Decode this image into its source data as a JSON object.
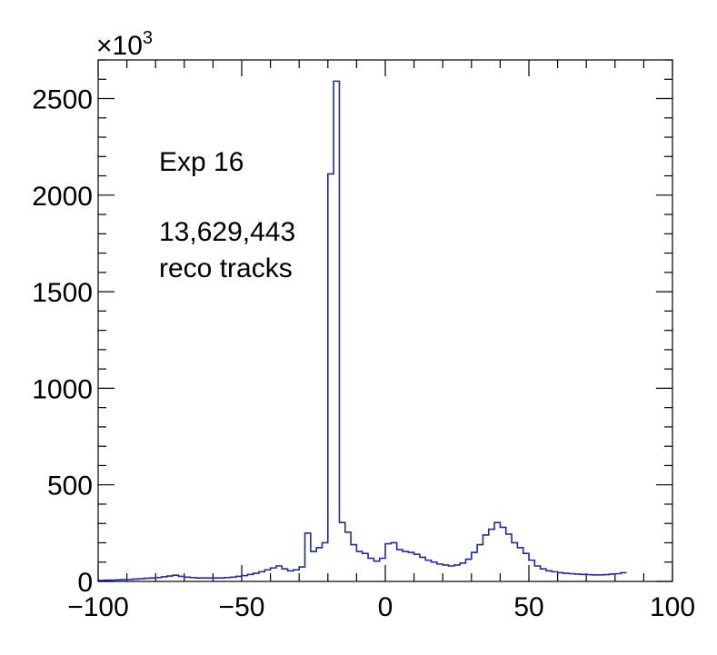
{
  "chart_data": {
    "type": "histogram",
    "title": "",
    "xlabel": "",
    "ylabel": "",
    "xlim": [
      -100,
      100
    ],
    "ylim": [
      0,
      2700
    ],
    "y_multiplier": "×10",
    "y_multiplier_exponent": "3",
    "x_ticks": [
      -100,
      -50,
      0,
      50,
      100
    ],
    "x_tick_labels": [
      "−100",
      "−50",
      "0",
      "50",
      "100"
    ],
    "y_ticks": [
      0,
      500,
      1000,
      1500,
      2000,
      2500
    ],
    "y_tick_labels": [
      "0",
      "500",
      "1000",
      "1500",
      "2000",
      "2500"
    ],
    "bin_width": 2,
    "bin_edges_start": -100,
    "values": [
      5,
      6,
      7,
      8,
      9,
      10,
      12,
      14,
      16,
      18,
      20,
      24,
      28,
      32,
      26,
      22,
      20,
      18,
      18,
      18,
      18,
      18,
      20,
      22,
      26,
      30,
      36,
      42,
      50,
      60,
      70,
      80,
      65,
      55,
      60,
      75,
      250,
      155,
      175,
      200,
      2110,
      2590,
      305,
      255,
      190,
      155,
      145,
      120,
      105,
      120,
      195,
      200,
      165,
      155,
      150,
      140,
      125,
      110,
      100,
      90,
      85,
      80,
      85,
      95,
      115,
      150,
      190,
      240,
      270,
      305,
      280,
      245,
      200,
      175,
      145,
      110,
      80,
      65,
      55,
      50,
      45,
      42,
      40,
      38,
      36,
      35,
      34,
      34,
      35,
      38,
      40,
      45
    ],
    "annotations": [
      "Exp 16",
      "13,629,443",
      "reco tracks"
    ],
    "line_color": "#1f2a9c",
    "grid": false,
    "legend": "none"
  }
}
